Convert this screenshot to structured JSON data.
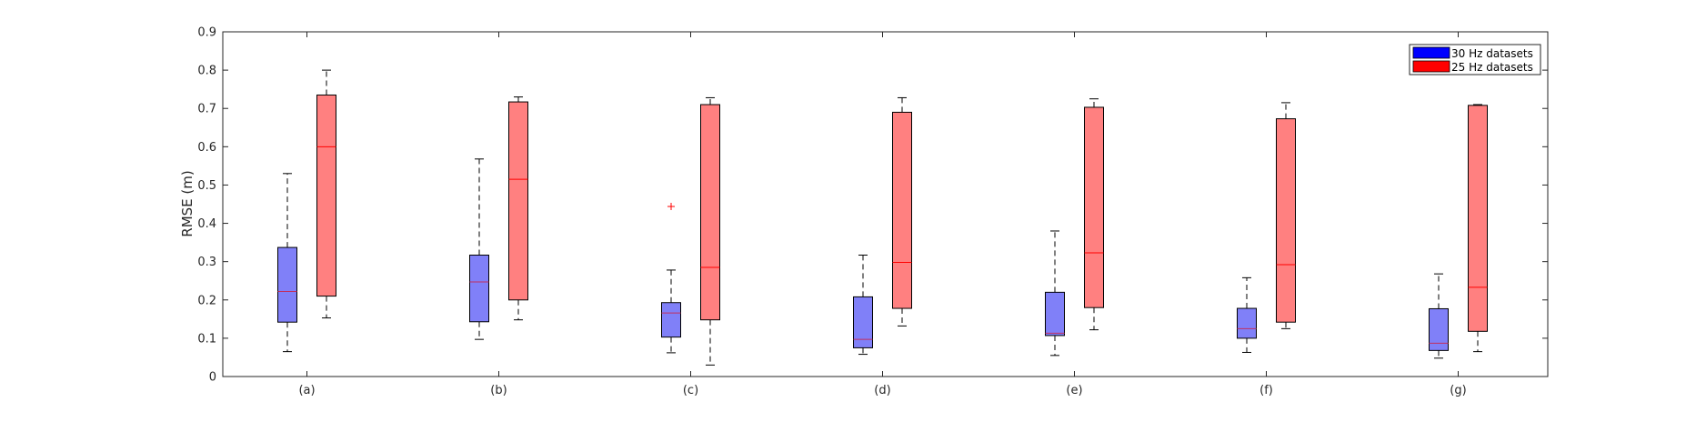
{
  "chart_data": {
    "type": "boxplot",
    "ylabel": "RMSE (m)",
    "ylim": [
      0,
      0.9
    ],
    "yticks": [
      0,
      0.1,
      0.2,
      0.3,
      0.4,
      0.5,
      0.6,
      0.7,
      0.8,
      0.9
    ],
    "ytick_labels": [
      "0",
      "0.1",
      "0.2",
      "0.3",
      "0.4",
      "0.5",
      "0.6",
      "0.7",
      "0.8",
      "0.9"
    ],
    "categories": [
      "(a)",
      "(b)",
      "(c)",
      "(d)",
      "(e)",
      "(f)",
      "(g)"
    ],
    "legend_position": "top-right",
    "series": [
      {
        "name": "30 Hz datasets",
        "color": "#0000ff",
        "fill": "#8080f8",
        "median_color": "#c03060",
        "boxes": [
          {
            "lower_whisker": 0.065,
            "q1": 0.142,
            "median": 0.222,
            "q3": 0.337,
            "upper_whisker": 0.53,
            "outliers": []
          },
          {
            "lower_whisker": 0.097,
            "q1": 0.143,
            "median": 0.247,
            "q3": 0.317,
            "upper_whisker": 0.568,
            "outliers": []
          },
          {
            "lower_whisker": 0.062,
            "q1": 0.103,
            "median": 0.166,
            "q3": 0.193,
            "upper_whisker": 0.278,
            "outliers": [
              0.444
            ]
          },
          {
            "lower_whisker": 0.058,
            "q1": 0.075,
            "median": 0.097,
            "q3": 0.208,
            "upper_whisker": 0.317,
            "outliers": []
          },
          {
            "lower_whisker": 0.055,
            "q1": 0.107,
            "median": 0.113,
            "q3": 0.22,
            "upper_whisker": 0.38,
            "outliers": []
          },
          {
            "lower_whisker": 0.063,
            "q1": 0.1,
            "median": 0.125,
            "q3": 0.178,
            "upper_whisker": 0.258,
            "outliers": []
          },
          {
            "lower_whisker": 0.048,
            "q1": 0.068,
            "median": 0.087,
            "q3": 0.177,
            "upper_whisker": 0.268,
            "outliers": []
          }
        ]
      },
      {
        "name": "25 Hz datasets",
        "color": "#ff0000",
        "fill": "#ff8080",
        "median_color": "#ff0000",
        "boxes": [
          {
            "lower_whisker": 0.153,
            "q1": 0.21,
            "median": 0.6,
            "q3": 0.735,
            "upper_whisker": 0.8,
            "outliers": []
          },
          {
            "lower_whisker": 0.148,
            "q1": 0.2,
            "median": 0.515,
            "q3": 0.717,
            "upper_whisker": 0.73,
            "outliers": []
          },
          {
            "lower_whisker": 0.03,
            "q1": 0.148,
            "median": 0.285,
            "q3": 0.71,
            "upper_whisker": 0.728,
            "outliers": []
          },
          {
            "lower_whisker": 0.132,
            "q1": 0.178,
            "median": 0.298,
            "q3": 0.69,
            "upper_whisker": 0.728,
            "outliers": []
          },
          {
            "lower_whisker": 0.122,
            "q1": 0.18,
            "median": 0.323,
            "q3": 0.703,
            "upper_whisker": 0.725,
            "outliers": []
          },
          {
            "lower_whisker": 0.125,
            "q1": 0.142,
            "median": 0.292,
            "q3": 0.673,
            "upper_whisker": 0.715,
            "outliers": []
          },
          {
            "lower_whisker": 0.065,
            "q1": 0.118,
            "median": 0.233,
            "q3": 0.708,
            "upper_whisker": 0.71,
            "outliers": []
          }
        ]
      }
    ]
  }
}
